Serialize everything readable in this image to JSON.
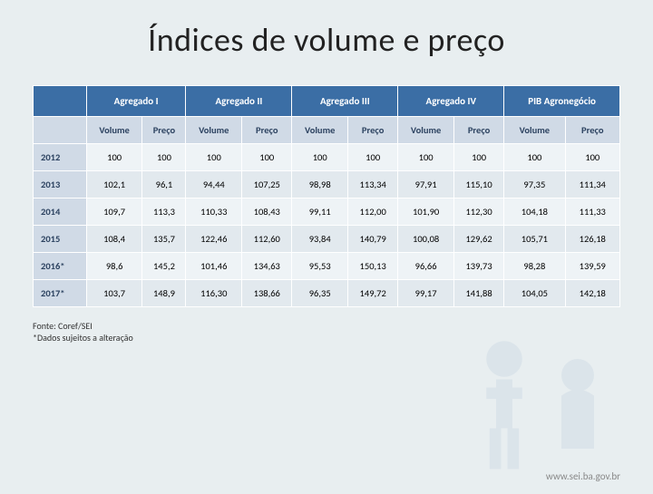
{
  "title": "Índices de volume e preço",
  "table": {
    "type": "table",
    "groups": [
      "Agregado I",
      "Agregado II",
      "Agregado III",
      "Agregado IV",
      "PIB Agronegócio"
    ],
    "sub_columns": [
      "Volume",
      "Preço"
    ],
    "year_header": "",
    "rows": [
      {
        "year": "2012",
        "cells": [
          "100",
          "100",
          "100",
          "100",
          "100",
          "100",
          "100",
          "100",
          "100",
          "100"
        ]
      },
      {
        "year": "2013",
        "cells": [
          "102,1",
          "96,1",
          "94,44",
          "107,25",
          "98,98",
          "113,34",
          "97,91",
          "115,10",
          "97,35",
          "111,34"
        ]
      },
      {
        "year": "2014",
        "cells": [
          "109,7",
          "113,3",
          "110,33",
          "108,43",
          "99,11",
          "112,00",
          "101,90",
          "112,30",
          "104,18",
          "111,33"
        ]
      },
      {
        "year": "2015",
        "cells": [
          "108,4",
          "135,7",
          "122,46",
          "112,60",
          "93,84",
          "140,79",
          "100,08",
          "129,62",
          "105,71",
          "126,18"
        ]
      },
      {
        "year": "2016*",
        "cells": [
          "98,6",
          "145,2",
          "101,46",
          "134,63",
          "95,53",
          "150,13",
          "96,66",
          "139,73",
          "98,28",
          "139,59"
        ]
      },
      {
        "year": "2017*",
        "cells": [
          "103,7",
          "148,9",
          "116,30",
          "138,66",
          "96,35",
          "149,72",
          "99,17",
          "141,88",
          "104,05",
          "142,18"
        ]
      }
    ],
    "colors": {
      "header_bg": "#3b6ea5",
      "header_fg": "#ffffff",
      "subheader_bg": "#d0dae6",
      "subheader_fg": "#2c4260",
      "row_odd_bg": "#eef3f6",
      "row_even_bg": "#e2e9ee",
      "border": "#ffffff"
    },
    "font_sizes": {
      "header": 11,
      "subheader": 10.5,
      "cell": 10.5
    }
  },
  "footnote_lines": [
    "Fonte: Coref/SEI",
    "*Dados sujeitos a alteração"
  ],
  "footer_url": "www.sei.ba.gov.br"
}
